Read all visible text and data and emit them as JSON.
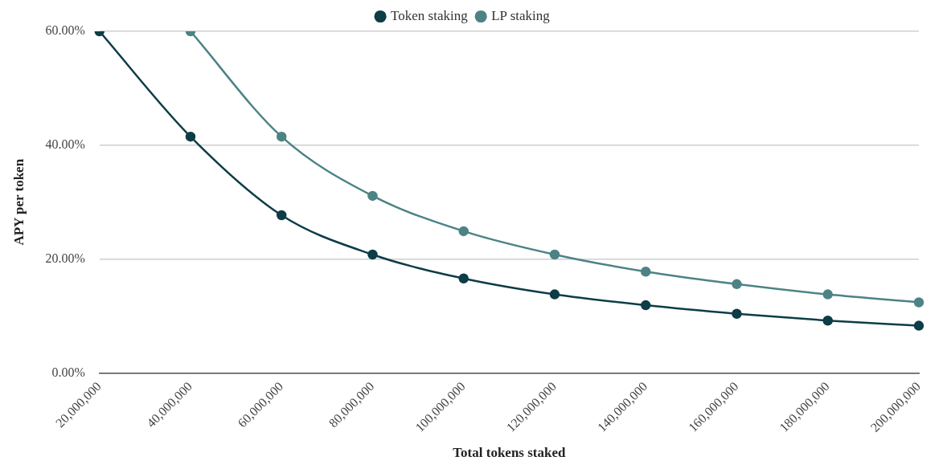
{
  "chart_data": {
    "type": "line",
    "xlabel": "Total tokens staked",
    "ylabel": "APY per token",
    "categories": [
      "20,000,000",
      "40,000,000",
      "60,000,000",
      "80,000,000",
      "100,000,000",
      "120,000,000",
      "140,000,000",
      "160,000,000",
      "180,000,000",
      "200,000,000"
    ],
    "series": [
      {
        "name": "Token staking",
        "color": "#0d3d47",
        "values": [
          60,
          41.5,
          27.7,
          20.8,
          16.6,
          13.8,
          11.9,
          10.4,
          9.2,
          8.3
        ]
      },
      {
        "name": "LP staking",
        "color": "#4d8385",
        "values": [
          null,
          60,
          41.5,
          31.1,
          24.9,
          20.8,
          17.8,
          15.6,
          13.8,
          12.4
        ]
      }
    ],
    "ylim": [
      0,
      60
    ],
    "yticks": [
      {
        "value": 0,
        "label": "0.00%"
      },
      {
        "value": 20,
        "label": "20.00%"
      },
      {
        "value": 40,
        "label": "40.00%"
      },
      {
        "value": 60,
        "label": "60.00%"
      }
    ],
    "grid": "y",
    "legend": "top",
    "marker": "circle",
    "line_style": "solid"
  }
}
